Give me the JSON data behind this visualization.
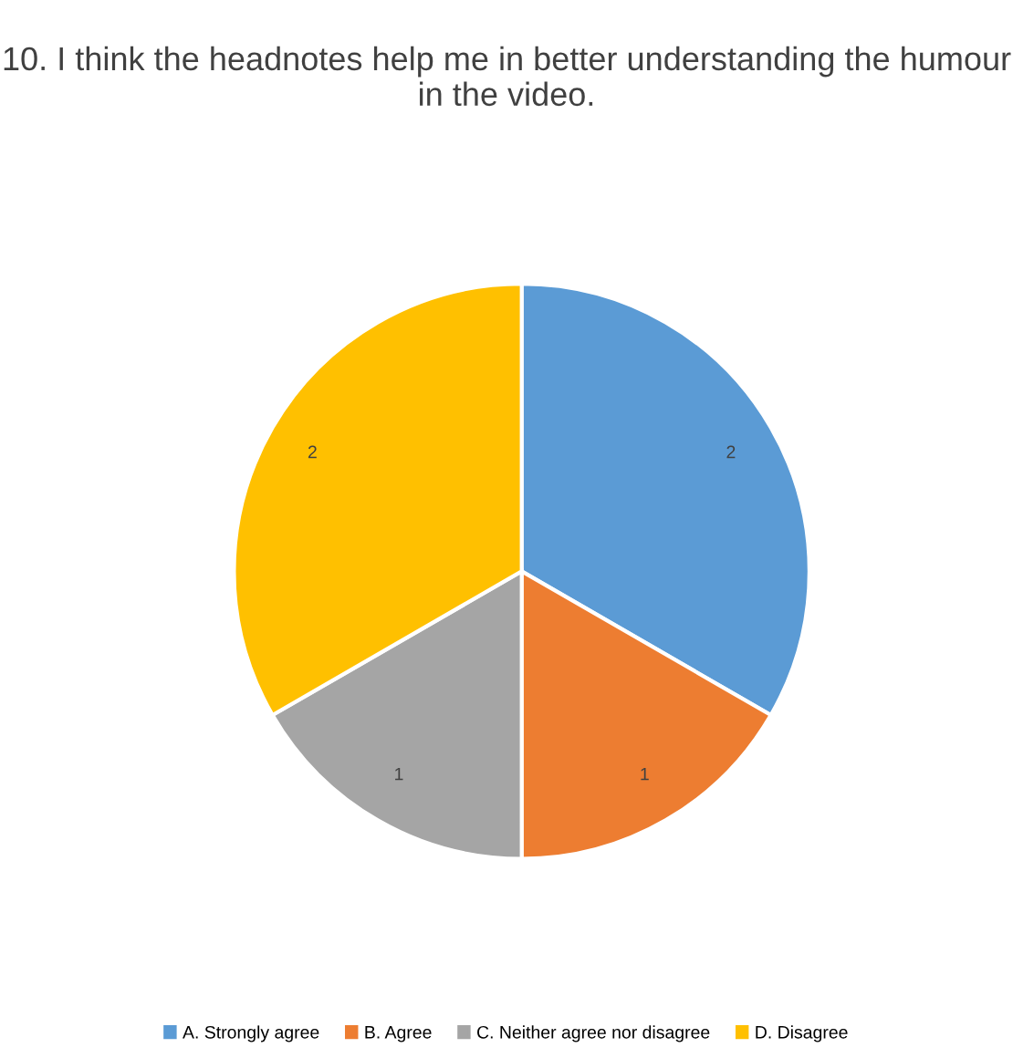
{
  "chart_data": {
    "type": "pie",
    "title": "10. I think the headnotes help me in better understanding the humour in the video.",
    "categories": [
      "A. Strongly agree",
      "B. Agree",
      "C. Neither agree nor disagree",
      "D. Disagree"
    ],
    "values": [
      2,
      1,
      1,
      2
    ],
    "colors": [
      "#5b9bd5",
      "#ed7d31",
      "#a5a5a5",
      "#ffc000"
    ],
    "data_labels": true,
    "legend": "bottom"
  }
}
